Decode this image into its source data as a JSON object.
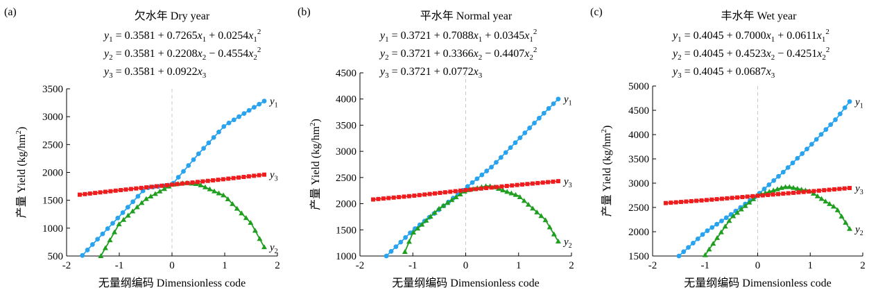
{
  "chart_data": [
    {
      "type": "line",
      "panel_label": "(a)",
      "title": "欠水年 Dry year",
      "xlabel": "无量纲编码 Dimensionless code",
      "ylabel": "产量 Yield (kg/hm2)",
      "xlim": [
        -2,
        2
      ],
      "ylim": [
        500,
        3500
      ],
      "x_ticks": [
        -2,
        -1,
        0,
        1,
        2
      ],
      "y_ticks": [
        500,
        1000,
        1500,
        2000,
        2500,
        3000,
        3500
      ],
      "equations": [
        {
          "lhs": "y1",
          "text": "y1=0.3581+0.7265x1+0.0254x1^2"
        },
        {
          "lhs": "y2",
          "text": "y2=0.3581+0.2208x2−0.4554x2^2"
        },
        {
          "lhs": "y3",
          "text": "y3=0.3581+0.0922x3"
        }
      ],
      "series": [
        {
          "name": "y1",
          "color": "#29a3ee",
          "marker": "circle",
          "x": [
            -1.7,
            -1.5,
            -1.0,
            -0.5,
            0.0,
            0.5,
            1.0,
            1.5,
            1.75
          ],
          "y": [
            510,
            715,
            1210,
            1720,
            1780,
            2330,
            2840,
            3135,
            3280
          ]
        },
        {
          "name": "y2",
          "color": "#1f9e1f",
          "marker": "triangle",
          "x": [
            -1.35,
            -1.0,
            -0.5,
            0.0,
            0.25,
            0.5,
            1.0,
            1.5,
            1.75
          ],
          "y": [
            500,
            1080,
            1520,
            1780,
            1815,
            1790,
            1580,
            1090,
            660
          ]
        },
        {
          "name": "y3",
          "color": "#ee1c1c",
          "marker": "square",
          "x": [
            -1.75,
            -1.0,
            0.0,
            1.0,
            1.75
          ],
          "y": [
            1600,
            1680,
            1780,
            1880,
            1960
          ]
        }
      ]
    },
    {
      "type": "line",
      "panel_label": "(b)",
      "title": "平水年 Normal year",
      "xlabel": "无量纲编码 Dimensionless code",
      "ylabel": "产量 Yield (kg/hm2)",
      "xlim": [
        -2,
        2
      ],
      "ylim": [
        1000,
        4500
      ],
      "x_ticks": [
        -2,
        -1,
        0,
        1,
        2
      ],
      "y_ticks": [
        1000,
        1500,
        2000,
        2500,
        3000,
        3500,
        4000,
        4500
      ],
      "equations": [
        {
          "lhs": "y1",
          "text": "y1=0.3721+0.7088x1+0.0345x1^2"
        },
        {
          "lhs": "y2",
          "text": "y2=0.3721+0.3366x2−0.4407x2^2"
        },
        {
          "lhs": "y3",
          "text": "y3=0.3721+0.0772x3"
        }
      ],
      "series": [
        {
          "name": "y1",
          "color": "#29a3ee",
          "marker": "circle",
          "x": [
            -1.5,
            -1.0,
            -0.5,
            0.0,
            0.5,
            1.0,
            1.5,
            1.75
          ],
          "y": [
            1000,
            1490,
            1890,
            2300,
            2710,
            3230,
            3750,
            4000
          ]
        },
        {
          "name": "y2",
          "color": "#1f9e1f",
          "marker": "triangle",
          "x": [
            -1.15,
            -1.0,
            -0.5,
            0.0,
            0.4,
            0.5,
            1.0,
            1.5,
            1.75
          ],
          "y": [
            1080,
            1440,
            1910,
            2250,
            2340,
            2330,
            2150,
            1700,
            1280
          ]
        },
        {
          "name": "y3",
          "color": "#ee1c1c",
          "marker": "square",
          "x": [
            -1.75,
            -1.0,
            0.0,
            1.0,
            1.75
          ],
          "y": [
            2080,
            2150,
            2260,
            2360,
            2430
          ]
        }
      ]
    },
    {
      "type": "line",
      "panel_label": "(c)",
      "title": "丰水年 Wet year",
      "xlabel": "无量纲编码 Dimensionless code",
      "ylabel": "产量 Yield (kg/hm2)",
      "xlim": [
        -2,
        2
      ],
      "ylim": [
        1500,
        5000
      ],
      "x_ticks": [
        -2,
        -1,
        0,
        1,
        2
      ],
      "y_ticks": [
        1500,
        2000,
        2500,
        3000,
        3500,
        4000,
        4500,
        5000
      ],
      "equations": [
        {
          "lhs": "y1",
          "text": "y1=0.4045+0.7000x1+0.0611x1^2"
        },
        {
          "lhs": "y2",
          "text": "y2=0.4045+0.4523x2−0.4251x2^2"
        },
        {
          "lhs": "y3",
          "text": "y3=0.4045+0.0687x3"
        }
      ],
      "series": [
        {
          "name": "y1",
          "color": "#29a3ee",
          "marker": "circle",
          "x": [
            -1.5,
            -1.0,
            -0.5,
            0.0,
            0.5,
            1.0,
            1.5,
            1.75
          ],
          "y": [
            1500,
            1990,
            2360,
            2760,
            3240,
            3770,
            4330,
            4680
          ]
        },
        {
          "name": "y2",
          "color": "#1f9e1f",
          "marker": "triangle",
          "x": [
            -1.0,
            -0.5,
            0.0,
            0.5,
            0.6,
            1.0,
            1.5,
            1.75
          ],
          "y": [
            1520,
            2290,
            2750,
            2920,
            2925,
            2830,
            2480,
            2060
          ]
        },
        {
          "name": "y3",
          "color": "#ee1c1c",
          "marker": "square",
          "x": [
            -1.75,
            -1.0,
            0.0,
            1.0,
            1.75
          ],
          "y": [
            2590,
            2650,
            2740,
            2830,
            2900
          ]
        }
      ]
    }
  ]
}
